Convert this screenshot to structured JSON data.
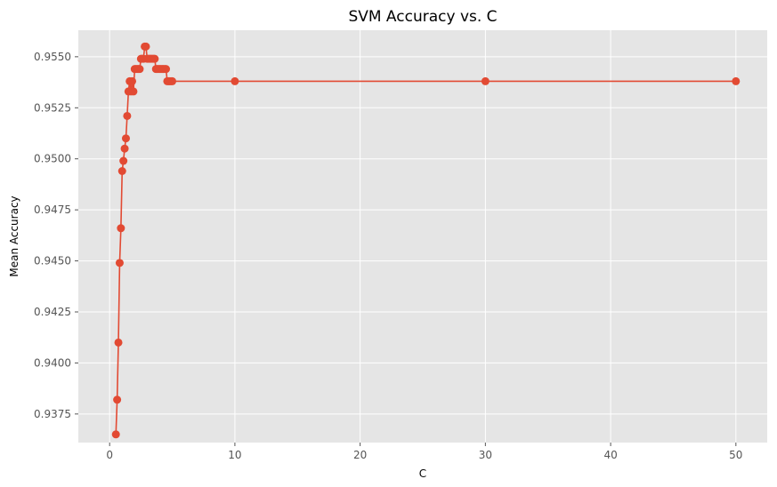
{
  "chart_data": {
    "type": "line",
    "title": "SVM Accuracy vs. C",
    "xlabel": "C",
    "ylabel": "Mean Accuracy",
    "xlim": [
      -2.5,
      52.5
    ],
    "ylim": [
      0.9361,
      0.9563
    ],
    "xticks": [
      0,
      10,
      20,
      30,
      40,
      50
    ],
    "yticks": [
      0.9375,
      0.94,
      0.9425,
      0.945,
      0.9475,
      0.95,
      0.9525,
      0.955
    ],
    "ytick_labels": [
      "0.9375",
      "0.9400",
      "0.9425",
      "0.9450",
      "0.9475",
      "0.9500",
      "0.9525",
      "0.9550"
    ],
    "grid": true,
    "series": [
      {
        "color": "#E24A33",
        "marker": "circle",
        "x": [
          0.5,
          0.6,
          0.7,
          0.8,
          0.9,
          1.0,
          1.1,
          1.2,
          1.3,
          1.4,
          1.5,
          1.6,
          1.7,
          1.8,
          1.9,
          2.0,
          2.1,
          2.2,
          2.3,
          2.4,
          2.5,
          2.6,
          2.7,
          2.8,
          2.9,
          3.0,
          3.1,
          3.2,
          3.3,
          3.4,
          3.5,
          3.6,
          3.7,
          3.8,
          3.9,
          4.0,
          4.1,
          4.2,
          4.3,
          4.4,
          4.5,
          4.6,
          4.7,
          4.8,
          4.9,
          5.0,
          10,
          30,
          50
        ],
        "y": [
          0.9365,
          0.9382,
          0.941,
          0.9449,
          0.9466,
          0.9494,
          0.9499,
          0.9505,
          0.951,
          0.9521,
          0.9533,
          0.9538,
          0.9533,
          0.9538,
          0.9533,
          0.9544,
          0.9544,
          0.9544,
          0.9544,
          0.9544,
          0.9549,
          0.9549,
          0.9549,
          0.9555,
          0.9555,
          0.9549,
          0.9549,
          0.9549,
          0.9549,
          0.9549,
          0.9549,
          0.9549,
          0.9544,
          0.9544,
          0.9544,
          0.9544,
          0.9544,
          0.9544,
          0.9544,
          0.9544,
          0.9544,
          0.9538,
          0.9538,
          0.9538,
          0.9538,
          0.9538,
          0.9538,
          0.9538,
          0.9538
        ]
      }
    ]
  },
  "colors": {
    "plot_background": "#E5E5E5",
    "grid": "#FFFFFF",
    "line": "#E24A33"
  }
}
